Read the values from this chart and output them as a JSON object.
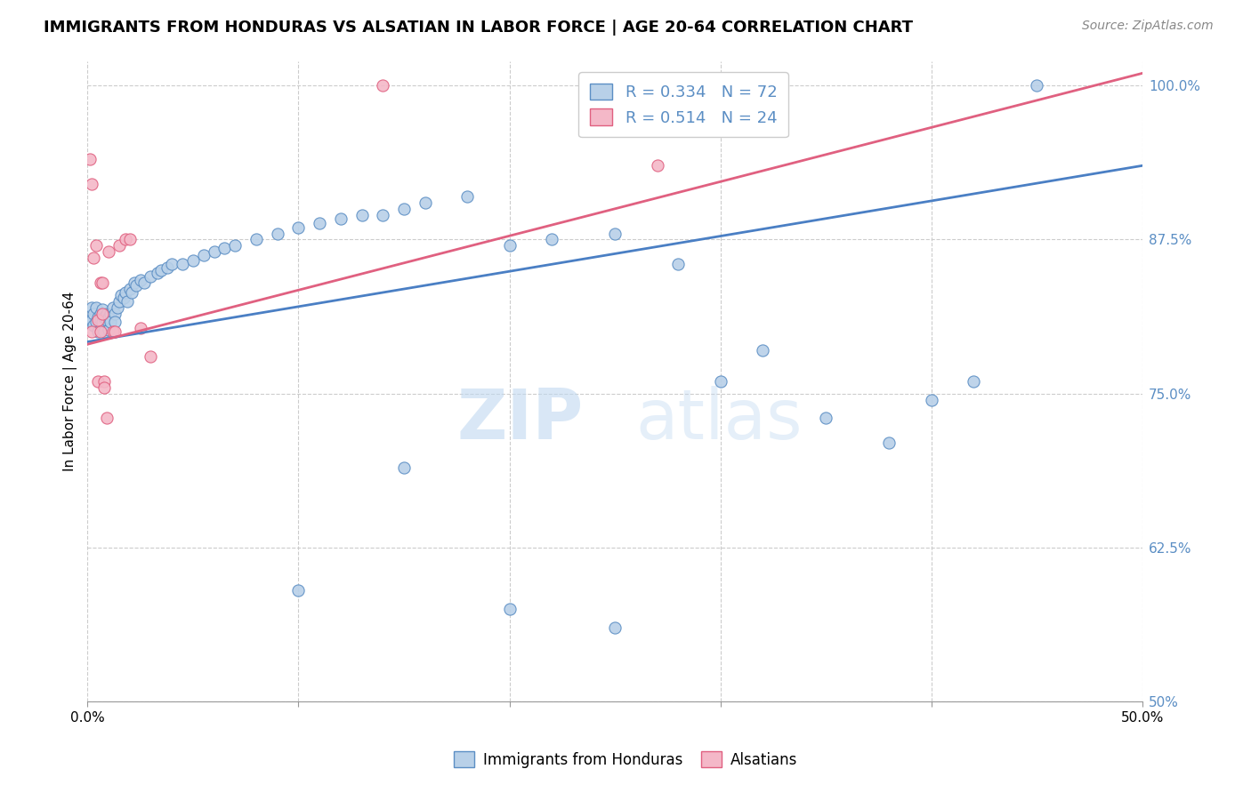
{
  "title": "IMMIGRANTS FROM HONDURAS VS ALSATIAN IN LABOR FORCE | AGE 20-64 CORRELATION CHART",
  "source": "Source: ZipAtlas.com",
  "ylabel": "In Labor Force | Age 20-64",
  "xlim": [
    0.0,
    0.5
  ],
  "ylim": [
    0.5,
    1.02
  ],
  "x_tick_vals": [
    0.0,
    0.1,
    0.2,
    0.3,
    0.4,
    0.5
  ],
  "x_tick_labels": [
    "0.0%",
    "",
    "",
    "",
    "",
    "50.0%"
  ],
  "y_ticks_right": [
    0.5,
    0.625,
    0.75,
    0.875,
    1.0
  ],
  "y_tick_labels_right": [
    "50%",
    "62.5%",
    "75.0%",
    "87.5%",
    "100.0%"
  ],
  "watermark_zip": "ZIP",
  "watermark_atlas": "atlas",
  "legend_blue_R": "0.334",
  "legend_blue_N": "72",
  "legend_pink_R": "0.514",
  "legend_pink_N": "24",
  "legend_label_blue": "Immigrants from Honduras",
  "legend_label_pink": "Alsatians",
  "blue_fill": "#b8d0e8",
  "blue_edge": "#5b8ec4",
  "blue_line": "#4a7fc4",
  "pink_fill": "#f4b8c8",
  "pink_edge": "#e06080",
  "pink_line": "#e06080",
  "scatter_blue_x": [
    0.001,
    0.002,
    0.002,
    0.003,
    0.003,
    0.004,
    0.004,
    0.005,
    0.005,
    0.006,
    0.006,
    0.007,
    0.007,
    0.008,
    0.008,
    0.009,
    0.009,
    0.01,
    0.01,
    0.011,
    0.011,
    0.012,
    0.013,
    0.013,
    0.014,
    0.015,
    0.016,
    0.017,
    0.018,
    0.019,
    0.02,
    0.021,
    0.022,
    0.023,
    0.025,
    0.027,
    0.03,
    0.033,
    0.035,
    0.038,
    0.04,
    0.045,
    0.05,
    0.055,
    0.06,
    0.065,
    0.07,
    0.08,
    0.09,
    0.1,
    0.11,
    0.12,
    0.13,
    0.14,
    0.15,
    0.16,
    0.18,
    0.2,
    0.22,
    0.25,
    0.28,
    0.3,
    0.32,
    0.35,
    0.38,
    0.4,
    0.42,
    0.45,
    0.1,
    0.15,
    0.2,
    0.25
  ],
  "scatter_blue_y": [
    0.81,
    0.82,
    0.81,
    0.815,
    0.805,
    0.82,
    0.808,
    0.812,
    0.8,
    0.815,
    0.81,
    0.808,
    0.818,
    0.812,
    0.8,
    0.815,
    0.81,
    0.812,
    0.802,
    0.815,
    0.808,
    0.82,
    0.815,
    0.808,
    0.82,
    0.825,
    0.83,
    0.828,
    0.832,
    0.825,
    0.835,
    0.832,
    0.84,
    0.838,
    0.842,
    0.84,
    0.845,
    0.848,
    0.85,
    0.852,
    0.855,
    0.855,
    0.858,
    0.862,
    0.865,
    0.868,
    0.87,
    0.875,
    0.88,
    0.885,
    0.888,
    0.892,
    0.895,
    0.895,
    0.9,
    0.905,
    0.91,
    0.87,
    0.875,
    0.88,
    0.855,
    0.76,
    0.785,
    0.73,
    0.71,
    0.745,
    0.76,
    1.0,
    0.59,
    0.69,
    0.575,
    0.56
  ],
  "scatter_pink_x": [
    0.001,
    0.002,
    0.002,
    0.003,
    0.004,
    0.005,
    0.005,
    0.006,
    0.006,
    0.007,
    0.007,
    0.008,
    0.008,
    0.009,
    0.01,
    0.012,
    0.013,
    0.015,
    0.018,
    0.02,
    0.025,
    0.03,
    0.14,
    0.27
  ],
  "scatter_pink_y": [
    0.94,
    0.92,
    0.8,
    0.86,
    0.87,
    0.76,
    0.81,
    0.84,
    0.8,
    0.815,
    0.84,
    0.76,
    0.755,
    0.73,
    0.865,
    0.8,
    0.8,
    0.87,
    0.875,
    0.875,
    0.803,
    0.78,
    1.0,
    0.935
  ],
  "blue_line_x0": 0.0,
  "blue_line_x1": 0.5,
  "blue_line_y0": 0.792,
  "blue_line_y1": 0.935,
  "pink_line_x0": 0.0,
  "pink_line_x1": 0.5,
  "pink_line_y0": 0.79,
  "pink_line_y1": 1.01,
  "title_fontsize": 13,
  "ylabel_fontsize": 11,
  "tick_fontsize": 11,
  "source_fontsize": 10,
  "bg_color": "#ffffff",
  "grid_color": "#cccccc"
}
